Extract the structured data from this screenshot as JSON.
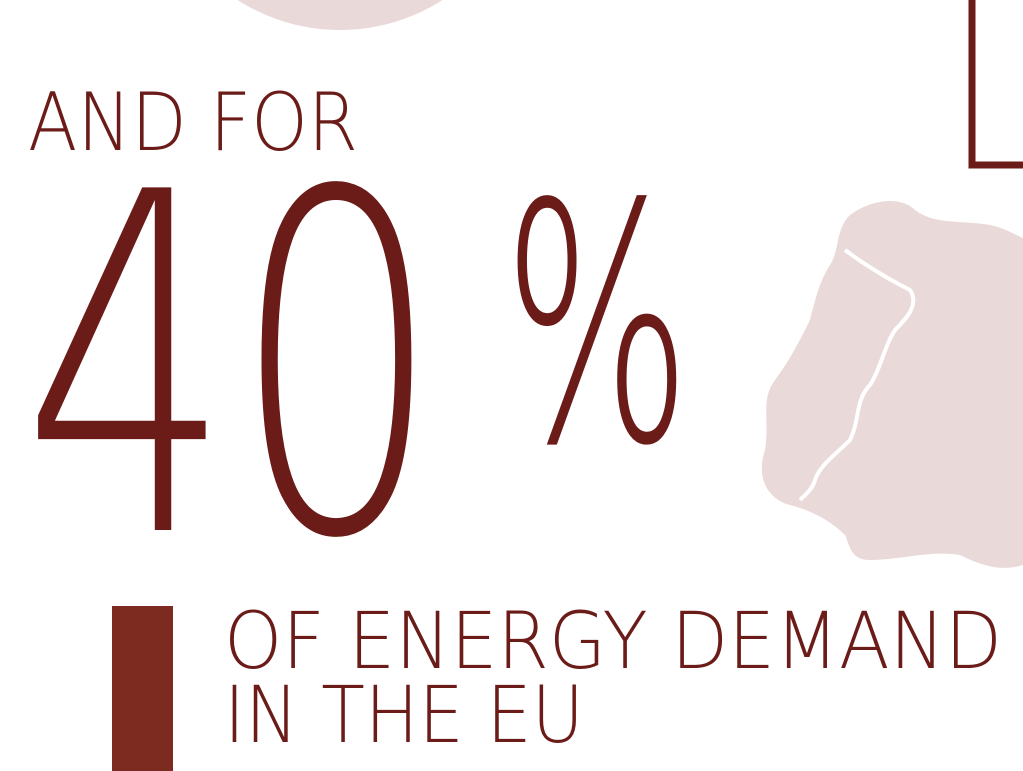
{
  "headline": {
    "intro": "AND FOR",
    "figure": "40",
    "unit": "%"
  },
  "caption": {
    "line1": "OF ENERGY DEMAND",
    "line2": "IN THE EU"
  }
}
